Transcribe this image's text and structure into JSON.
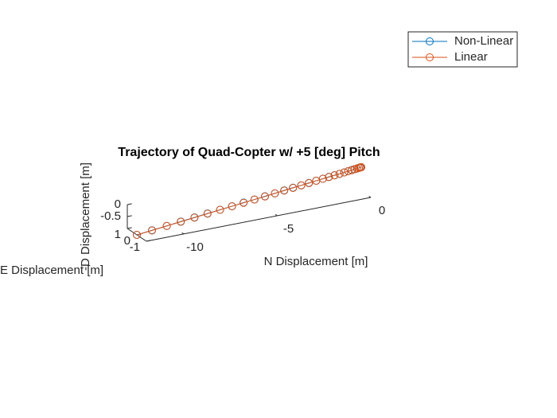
{
  "chart_data": {
    "type": "line3d",
    "title": "Trajectory of Quad-Copter w/ +5 [deg] Pitch",
    "xlabel": "N Displacement [m]",
    "ylabel": "E Displacement [m]",
    "zlabel": "-D Displacement [m]",
    "xlim": [
      -12,
      0
    ],
    "xticks": [
      -10,
      -5,
      0
    ],
    "ylim": [
      -1,
      1
    ],
    "yticks": [
      -1,
      0,
      1
    ],
    "zlim": [
      -1,
      0
    ],
    "zticks": [
      -0.5,
      0
    ],
    "marker": "circle",
    "legend": "top-right",
    "series": [
      {
        "name": "Non-Linear",
        "color": "#0072BD",
        "x": [
          0,
          -0.01,
          -0.06,
          -0.13,
          -0.23,
          -0.36,
          -0.51,
          -0.7,
          -0.91,
          -1.16,
          -1.43,
          -1.73,
          -2.05,
          -2.41,
          -2.8,
          -3.21,
          -3.65,
          -4.12,
          -4.62,
          -5.15,
          -5.71,
          -6.29,
          -6.91,
          -7.55,
          -8.22,
          -8.92,
          -9.65,
          -10.4,
          -11.19,
          -12
        ],
        "y": [
          0,
          0,
          0,
          0,
          0,
          0,
          0,
          0,
          0,
          0,
          0,
          0,
          0,
          0,
          0,
          0,
          0,
          0,
          0,
          0,
          0,
          0,
          0,
          0,
          0,
          0,
          0,
          0,
          0,
          0
        ],
        "z": [
          0,
          0,
          0,
          -0.01,
          -0.02,
          -0.03,
          -0.04,
          -0.06,
          -0.08,
          -0.1,
          -0.12,
          -0.14,
          -0.17,
          -0.2,
          -0.23,
          -0.27,
          -0.3,
          -0.34,
          -0.39,
          -0.43,
          -0.48,
          -0.52,
          -0.58,
          -0.63,
          -0.68,
          -0.74,
          -0.8,
          -0.87,
          -0.93,
          -1
        ]
      },
      {
        "name": "Linear",
        "color": "#D95319",
        "x": [
          0,
          -0.01,
          -0.06,
          -0.13,
          -0.23,
          -0.36,
          -0.51,
          -0.7,
          -0.91,
          -1.16,
          -1.43,
          -1.73,
          -2.05,
          -2.41,
          -2.8,
          -3.21,
          -3.65,
          -4.12,
          -4.62,
          -5.15,
          -5.71,
          -6.29,
          -6.91,
          -7.55,
          -8.22,
          -8.92,
          -9.65,
          -10.4,
          -11.19,
          -12
        ],
        "y": [
          0,
          0,
          0,
          0,
          0,
          0,
          0,
          0,
          0,
          0,
          0,
          0,
          0,
          0,
          0,
          0,
          0,
          0,
          0,
          0,
          0,
          0,
          0,
          0,
          0,
          0,
          0,
          0,
          0,
          0
        ],
        "z": [
          0,
          0,
          -0.01,
          -0.01,
          -0.02,
          -0.03,
          -0.05,
          -0.06,
          -0.08,
          -0.1,
          -0.12,
          -0.15,
          -0.17,
          -0.2,
          -0.24,
          -0.27,
          -0.31,
          -0.35,
          -0.39,
          -0.44,
          -0.48,
          -0.53,
          -0.58,
          -0.63,
          -0.69,
          -0.75,
          -0.81,
          -0.87,
          -0.94,
          -1
        ]
      }
    ]
  }
}
